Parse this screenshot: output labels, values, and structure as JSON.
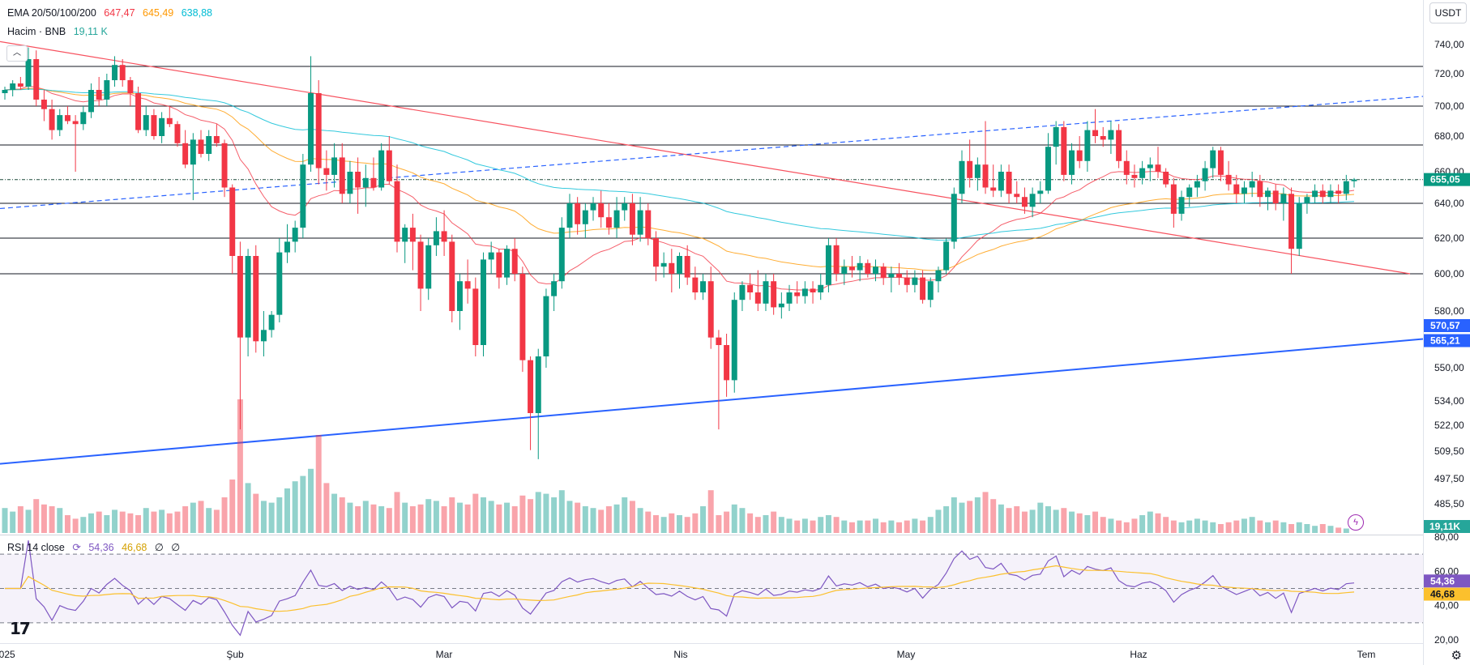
{
  "ema_legend": {
    "label": "EMA 20/50/100/200",
    "v20": "647,47",
    "v50": "645,49",
    "v100": "638,88",
    "color20": "#f23645",
    "color50": "#ff9800",
    "color100": "#00bcd4"
  },
  "volume_legend": {
    "label": "Hacim · BNB",
    "value": "19,11 K",
    "color": "#26a69a"
  },
  "rsi_legend": {
    "label": "RSI 14 close",
    "rsi": "54,36",
    "ma": "46,68",
    "extra1": "∅",
    "extra2": "∅",
    "rsi_color": "#7e57c2",
    "ma_color": "#fbc02d"
  },
  "currency": "USDT",
  "collapse_icon": "chevron-up-icon",
  "chart_data": {
    "type": "candlestick",
    "time_labels": [
      "2025",
      "Şub",
      "Mar",
      "Nis",
      "May",
      "Haz",
      "Tem"
    ],
    "price_axis": {
      "ticks": [
        "740,00",
        "720,00",
        "700,00",
        "680,00",
        "660,00",
        "640,00",
        "620,00",
        "600,00",
        "580,00",
        "550,00",
        "534,00",
        "522,00",
        "509,50",
        "497,50",
        "485,50"
      ],
      "tick_values": [
        740,
        720,
        700,
        680,
        660,
        640,
        620,
        600,
        580,
        550,
        534,
        522,
        509.5,
        497.5,
        485.5
      ],
      "top_value": "760,00"
    },
    "price_badges": [
      {
        "label": "655,05",
        "value": 655.05,
        "color": "#089981"
      },
      {
        "label": "570,57",
        "value": 570.57,
        "color": "#2962ff"
      },
      {
        "label": "565,21",
        "value": 565.21,
        "color": "#2962ff"
      }
    ],
    "volume_badge": "19,11K",
    "horizontal_levels": [
      725,
      700,
      675,
      655,
      640,
      620,
      600
    ],
    "current_price": 655.05,
    "candles": [
      [
        708,
        712,
        704,
        710
      ],
      [
        710,
        716,
        706,
        714
      ],
      [
        714,
        718,
        710,
        712
      ],
      [
        712,
        738,
        710,
        730
      ],
      [
        730,
        736,
        700,
        704
      ],
      [
        704,
        710,
        690,
        698
      ],
      [
        698,
        704,
        678,
        684
      ],
      [
        684,
        698,
        680,
        694
      ],
      [
        694,
        700,
        688,
        690
      ],
      [
        690,
        694,
        660,
        688
      ],
      [
        688,
        700,
        684,
        696
      ],
      [
        696,
        714,
        692,
        710
      ],
      [
        710,
        718,
        700,
        704
      ],
      [
        704,
        720,
        700,
        716
      ],
      [
        716,
        732,
        712,
        726
      ],
      [
        726,
        730,
        712,
        716
      ],
      [
        716,
        718,
        700,
        708
      ],
      [
        708,
        712,
        682,
        684
      ],
      [
        684,
        700,
        680,
        694
      ],
      [
        694,
        698,
        678,
        680
      ],
      [
        680,
        696,
        676,
        692
      ],
      [
        692,
        700,
        686,
        688
      ],
      [
        688,
        690,
        674,
        676
      ],
      [
        676,
        684,
        662,
        664
      ],
      [
        664,
        682,
        642,
        678
      ],
      [
        678,
        684,
        668,
        670
      ],
      [
        670,
        684,
        666,
        680
      ],
      [
        680,
        688,
        674,
        676
      ],
      [
        676,
        678,
        644,
        650
      ],
      [
        650,
        652,
        600,
        610
      ],
      [
        610,
        618,
        520,
        566
      ],
      [
        566,
        614,
        556,
        610
      ],
      [
        610,
        616,
        558,
        564
      ],
      [
        564,
        580,
        556,
        570
      ],
      [
        570,
        580,
        566,
        578
      ],
      [
        578,
        620,
        574,
        612
      ],
      [
        612,
        628,
        606,
        618
      ],
      [
        618,
        630,
        612,
        626
      ],
      [
        626,
        670,
        620,
        664
      ],
      [
        664,
        732,
        660,
        708
      ],
      [
        708,
        716,
        652,
        662
      ],
      [
        662,
        672,
        648,
        658
      ],
      [
        658,
        676,
        650,
        668
      ],
      [
        668,
        676,
        640,
        646
      ],
      [
        646,
        666,
        640,
        660
      ],
      [
        660,
        668,
        634,
        650
      ],
      [
        650,
        664,
        638,
        656
      ],
      [
        656,
        668,
        648,
        650
      ],
      [
        650,
        676,
        648,
        672
      ],
      [
        672,
        680,
        652,
        654
      ],
      [
        654,
        664,
        612,
        618
      ],
      [
        618,
        628,
        606,
        626
      ],
      [
        626,
        634,
        602,
        618
      ],
      [
        618,
        622,
        580,
        592
      ],
      [
        592,
        620,
        586,
        616
      ],
      [
        616,
        632,
        610,
        624
      ],
      [
        624,
        636,
        610,
        618
      ],
      [
        618,
        622,
        574,
        580
      ],
      [
        580,
        600,
        570,
        596
      ],
      [
        596,
        608,
        584,
        592
      ],
      [
        592,
        598,
        556,
        562
      ],
      [
        562,
        612,
        556,
        608
      ],
      [
        608,
        618,
        600,
        612
      ],
      [
        612,
        614,
        592,
        598
      ],
      [
        598,
        616,
        594,
        614
      ],
      [
        614,
        620,
        596,
        600
      ],
      [
        600,
        604,
        548,
        554
      ],
      [
        554,
        556,
        510,
        528
      ],
      [
        528,
        560,
        506,
        556
      ],
      [
        556,
        592,
        550,
        588
      ],
      [
        588,
        600,
        580,
        596
      ],
      [
        596,
        632,
        592,
        626
      ],
      [
        626,
        646,
        620,
        640
      ],
      [
        640,
        644,
        622,
        628
      ],
      [
        628,
        640,
        620,
        636
      ],
      [
        636,
        644,
        630,
        640
      ],
      [
        640,
        648,
        626,
        632
      ],
      [
        632,
        640,
        622,
        626
      ],
      [
        626,
        644,
        620,
        636
      ],
      [
        636,
        644,
        630,
        640
      ],
      [
        640,
        646,
        616,
        622
      ],
      [
        622,
        644,
        618,
        636
      ],
      [
        636,
        640,
        616,
        620
      ],
      [
        620,
        624,
        596,
        604
      ],
      [
        604,
        612,
        598,
        606
      ],
      [
        606,
        614,
        590,
        600
      ],
      [
        600,
        612,
        592,
        610
      ],
      [
        610,
        616,
        594,
        598
      ],
      [
        598,
        604,
        586,
        590
      ],
      [
        590,
        600,
        586,
        596
      ],
      [
        596,
        604,
        560,
        566
      ],
      [
        566,
        570,
        520,
        562
      ],
      [
        562,
        568,
        536,
        544
      ],
      [
        544,
        590,
        538,
        586
      ],
      [
        586,
        596,
        580,
        594
      ],
      [
        594,
        600,
        586,
        590
      ],
      [
        590,
        602,
        580,
        584
      ],
      [
        584,
        600,
        580,
        596
      ],
      [
        596,
        600,
        578,
        582
      ],
      [
        582,
        590,
        576,
        584
      ],
      [
        584,
        594,
        580,
        590
      ],
      [
        590,
        596,
        584,
        588
      ],
      [
        588,
        596,
        584,
        592
      ],
      [
        592,
        596,
        584,
        590
      ],
      [
        590,
        600,
        586,
        594
      ],
      [
        594,
        620,
        590,
        616
      ],
      [
        616,
        620,
        596,
        600
      ],
      [
        600,
        608,
        594,
        604
      ],
      [
        604,
        610,
        598,
        602
      ],
      [
        602,
        610,
        596,
        606
      ],
      [
        606,
        608,
        598,
        600
      ],
      [
        600,
        608,
        596,
        604
      ],
      [
        604,
        606,
        594,
        598
      ],
      [
        598,
        604,
        590,
        600
      ],
      [
        600,
        606,
        594,
        598
      ],
      [
        598,
        602,
        590,
        594
      ],
      [
        594,
        602,
        590,
        598
      ],
      [
        598,
        602,
        584,
        586
      ],
      [
        586,
        598,
        582,
        596
      ],
      [
        596,
        604,
        590,
        602
      ],
      [
        602,
        620,
        600,
        618
      ],
      [
        618,
        650,
        614,
        646
      ],
      [
        646,
        672,
        640,
        666
      ],
      [
        666,
        678,
        650,
        656
      ],
      [
        656,
        668,
        648,
        664
      ],
      [
        664,
        690,
        646,
        650
      ],
      [
        650,
        664,
        644,
        648
      ],
      [
        648,
        664,
        644,
        660
      ],
      [
        660,
        664,
        640,
        646
      ],
      [
        646,
        654,
        640,
        644
      ],
      [
        644,
        650,
        634,
        638
      ],
      [
        638,
        650,
        632,
        646
      ],
      [
        646,
        654,
        640,
        648
      ],
      [
        648,
        682,
        646,
        674
      ],
      [
        674,
        690,
        664,
        686
      ],
      [
        686,
        690,
        654,
        658
      ],
      [
        658,
        676,
        652,
        672
      ],
      [
        672,
        680,
        662,
        666
      ],
      [
        666,
        690,
        660,
        684
      ],
      [
        684,
        698,
        676,
        680
      ],
      [
        680,
        686,
        674,
        678
      ],
      [
        678,
        690,
        670,
        684
      ],
      [
        684,
        688,
        662,
        666
      ],
      [
        666,
        672,
        652,
        658
      ],
      [
        658,
        664,
        650,
        656
      ],
      [
        656,
        666,
        652,
        662
      ],
      [
        662,
        668,
        654,
        664
      ],
      [
        664,
        674,
        656,
        660
      ],
      [
        660,
        662,
        650,
        652
      ],
      [
        652,
        656,
        626,
        634
      ],
      [
        634,
        648,
        630,
        644
      ],
      [
        644,
        652,
        638,
        650
      ],
      [
        650,
        658,
        644,
        654
      ],
      [
        654,
        666,
        648,
        662
      ],
      [
        662,
        674,
        656,
        672
      ],
      [
        672,
        674,
        654,
        658
      ],
      [
        658,
        666,
        648,
        652
      ],
      [
        652,
        658,
        640,
        646
      ],
      [
        646,
        654,
        640,
        650
      ],
      [
        650,
        660,
        644,
        654
      ],
      [
        654,
        658,
        638,
        644
      ],
      [
        644,
        650,
        636,
        648
      ],
      [
        648,
        652,
        636,
        640
      ],
      [
        640,
        650,
        630,
        646
      ],
      [
        646,
        650,
        600,
        614
      ],
      [
        614,
        644,
        610,
        640
      ],
      [
        640,
        646,
        634,
        644
      ],
      [
        644,
        652,
        640,
        648
      ],
      [
        648,
        652,
        640,
        644
      ],
      [
        644,
        652,
        640,
        648
      ],
      [
        648,
        652,
        640,
        646
      ],
      [
        646,
        658,
        642,
        654
      ],
      [
        654,
        656,
        650,
        655.05
      ]
    ],
    "volumes": [
      28,
      24,
      30,
      26,
      38,
      32,
      30,
      28,
      20,
      16,
      18,
      22,
      24,
      20,
      26,
      24,
      22,
      20,
      28,
      24,
      26,
      22,
      24,
      30,
      34,
      36,
      28,
      26,
      40,
      60,
      150,
      56,
      44,
      36,
      34,
      40,
      50,
      58,
      64,
      72,
      110,
      56,
      44,
      40,
      34,
      30,
      36,
      32,
      30,
      28,
      46,
      34,
      30,
      32,
      38,
      36,
      30,
      40,
      34,
      32,
      44,
      40,
      36,
      32,
      34,
      30,
      42,
      38,
      46,
      44,
      40,
      48,
      36,
      34,
      30,
      28,
      26,
      30,
      32,
      40,
      36,
      28,
      24,
      20,
      18,
      22,
      20,
      18,
      22,
      30,
      48,
      20,
      24,
      32,
      28,
      22,
      18,
      20,
      24,
      18,
      16,
      14,
      16,
      14,
      18,
      20,
      18,
      14,
      12,
      14,
      14,
      16,
      12,
      14,
      12,
      14,
      16,
      14,
      18,
      26,
      30,
      40,
      34,
      36,
      40,
      46,
      38,
      32,
      28,
      30,
      24,
      26,
      34,
      30,
      26,
      28,
      24,
      22,
      20,
      24,
      18,
      16,
      14,
      12,
      16,
      20,
      24,
      22,
      18,
      14,
      12,
      14,
      16,
      14,
      12,
      10,
      12,
      14,
      16,
      18,
      14,
      12,
      14,
      12,
      10,
      12,
      10,
      8,
      10,
      8,
      6,
      5
    ],
    "rsi": {
      "top_value": "80,00",
      "ticks": [
        "60,00",
        "40,00",
        "20,00"
      ],
      "tick_values": [
        60,
        40,
        20
      ],
      "bands": [
        70,
        50,
        30
      ],
      "range": [
        20,
        80
      ],
      "current_rsi": 54.36,
      "current_ma": 46.68
    }
  }
}
